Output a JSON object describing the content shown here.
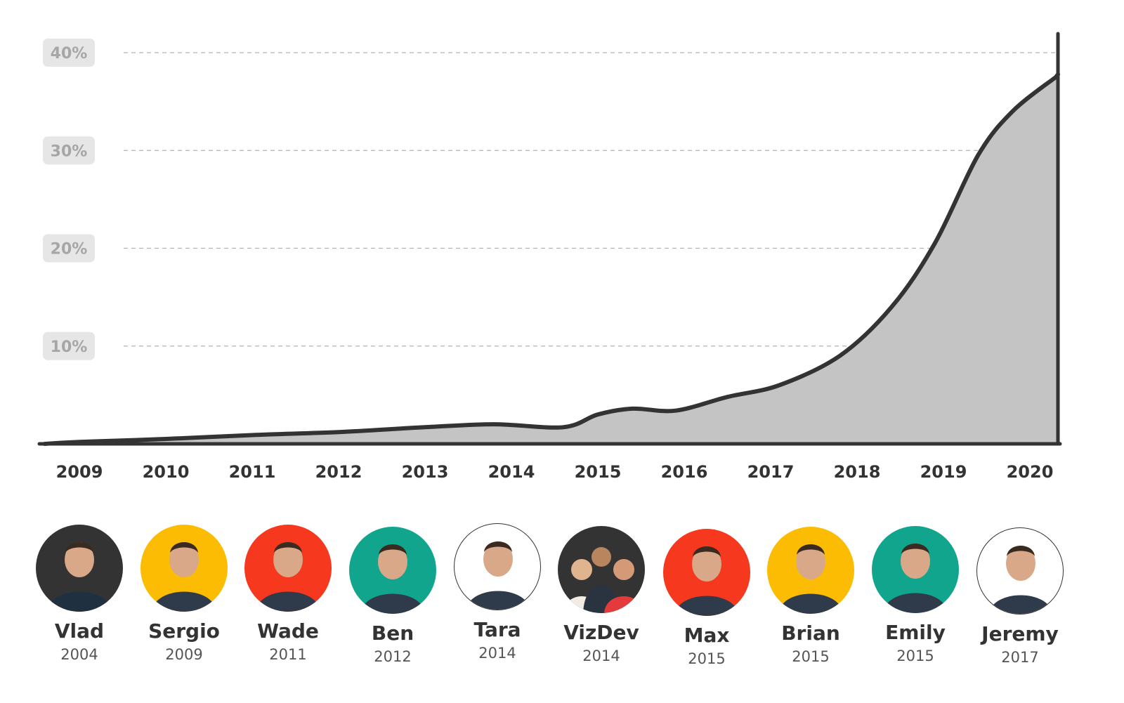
{
  "colors": {
    "area_fill": "#c4c4c4",
    "line": "#333333",
    "grid": "#b3b3b3",
    "ytick_bg": "#e6e6e6",
    "ytick_text": "#a6a6a6",
    "axis_text": "#333333"
  },
  "chart_data": {
    "type": "area",
    "title": "",
    "xlabel": "",
    "ylabel": "",
    "x_ticks": [
      "2009",
      "2010",
      "2011",
      "2012",
      "2013",
      "2014",
      "2015",
      "2016",
      "2017",
      "2018",
      "2019",
      "2020"
    ],
    "y_ticks": [
      "10%",
      "20%",
      "30%",
      "40%"
    ],
    "ylim": [
      0,
      40
    ],
    "grid": "horizontal dashed",
    "series": [
      {
        "values": [
          {
            "x": 2008.6,
            "y": 0
          },
          {
            "x": 2009.0,
            "y": 0.2
          },
          {
            "x": 2010.0,
            "y": 0.5
          },
          {
            "x": 2011.0,
            "y": 0.9
          },
          {
            "x": 2012.0,
            "y": 1.2
          },
          {
            "x": 2013.0,
            "y": 1.7
          },
          {
            "x": 2013.8,
            "y": 2.0
          },
          {
            "x": 2014.6,
            "y": 1.7
          },
          {
            "x": 2015.0,
            "y": 3.0
          },
          {
            "x": 2015.4,
            "y": 3.6
          },
          {
            "x": 2015.9,
            "y": 3.4
          },
          {
            "x": 2016.5,
            "y": 4.8
          },
          {
            "x": 2017.1,
            "y": 6.0
          },
          {
            "x": 2017.8,
            "y": 9.0
          },
          {
            "x": 2018.4,
            "y": 14.0
          },
          {
            "x": 2018.9,
            "y": 20.5
          },
          {
            "x": 2019.4,
            "y": 29.5
          },
          {
            "x": 2019.8,
            "y": 34.0
          },
          {
            "x": 2020.3,
            "y": 37.5
          }
        ]
      }
    ]
  },
  "people": [
    {
      "name": "Vlad",
      "year": "2004",
      "bg": "#333333",
      "icon": "person-avatar-icon"
    },
    {
      "name": "Sergio",
      "year": "2009",
      "bg": "#fcbc04",
      "icon": "person-avatar-icon"
    },
    {
      "name": "Wade",
      "year": "2011",
      "bg": "#f5381e",
      "icon": "person-avatar-icon"
    },
    {
      "name": "Ben",
      "year": "2012",
      "bg": "#12a58e",
      "icon": "person-avatar-icon"
    },
    {
      "name": "Tara",
      "year": "2014",
      "bg": "#ffffff",
      "icon": "person-avatar-icon"
    },
    {
      "name": "VizDev",
      "year": "2014",
      "bg": "#333333",
      "icon": "group-avatar-icon"
    },
    {
      "name": "Max",
      "year": "2015",
      "bg": "#f5381e",
      "icon": "person-avatar-icon"
    },
    {
      "name": "Brian",
      "year": "2015",
      "bg": "#fcbc04",
      "icon": "person-avatar-icon"
    },
    {
      "name": "Emily",
      "year": "2015",
      "bg": "#12a58e",
      "icon": "person-avatar-icon"
    },
    {
      "name": "Jeremy",
      "year": "2017",
      "bg": "#ffffff",
      "icon": "person-avatar-icon"
    }
  ]
}
